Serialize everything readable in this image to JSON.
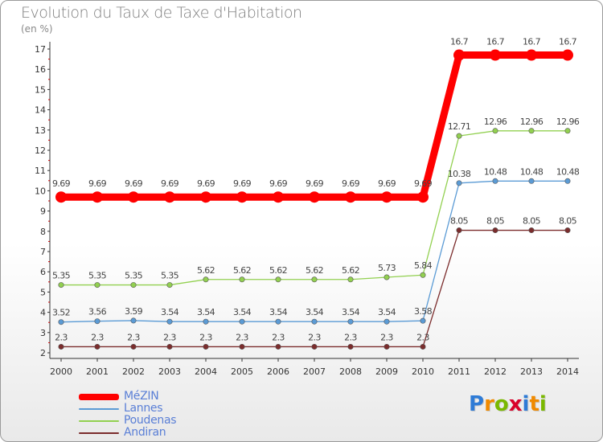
{
  "header": {
    "title": "Evolution du Taux de Taxe d'Habitation",
    "unit": "(en %)"
  },
  "chart_data": {
    "type": "line",
    "title": "Evolution du Taux de Taxe d'Habitation",
    "ylabel": "(en %)",
    "xlabel": "",
    "x": [
      "2000",
      "2001",
      "2002",
      "2003",
      "2004",
      "2005",
      "2006",
      "2007",
      "2008",
      "2009",
      "2010",
      "2011",
      "2012",
      "2013",
      "2014"
    ],
    "ylim": [
      2,
      17
    ],
    "yticks": [
      2,
      3,
      4,
      5,
      6,
      7,
      8,
      9,
      10,
      11,
      12,
      13,
      14,
      15,
      16,
      17
    ],
    "grid": false,
    "legend_position": "bottom-left",
    "series": [
      {
        "name": "MéZIN",
        "color": "#ff0000",
        "values": [
          9.69,
          9.69,
          9.69,
          9.69,
          9.69,
          9.69,
          9.69,
          9.69,
          9.69,
          9.69,
          9.69,
          16.7,
          16.7,
          16.7,
          16.7
        ],
        "labels": [
          "9.69",
          "9.69",
          "9.69",
          "9.69",
          "9.69",
          "9.69",
          "9.69",
          "9.69",
          "9.69",
          "9.69",
          "9.69",
          "16.7",
          "16.7",
          "16.7",
          "16.7"
        ]
      },
      {
        "name": "Lannes",
        "color": "#5b9bd5",
        "values": [
          3.52,
          3.56,
          3.59,
          3.54,
          3.54,
          3.54,
          3.54,
          3.54,
          3.54,
          3.54,
          3.58,
          10.38,
          10.48,
          10.48,
          10.48
        ],
        "labels": [
          "3.52",
          "3.56",
          "3.59",
          "3.54",
          "3.54",
          "3.54",
          "3.54",
          "3.54",
          "3.54",
          "3.54",
          "3.58",
          "10.38",
          "10.48",
          "10.48",
          "10.48"
        ]
      },
      {
        "name": "Poudenas",
        "color": "#92d050",
        "values": [
          5.35,
          5.35,
          5.35,
          5.35,
          5.62,
          5.62,
          5.62,
          5.62,
          5.62,
          5.73,
          5.84,
          12.71,
          12.96,
          12.96,
          12.96
        ],
        "labels": [
          "5.35",
          "5.35",
          "5.35",
          "5.35",
          "5.62",
          "5.62",
          "5.62",
          "5.62",
          "5.62",
          "5.73",
          "5.84",
          "12.71",
          "12.96",
          "12.96",
          "12.96"
        ]
      },
      {
        "name": "Andiran",
        "color": "#7b2c2c",
        "values": [
          2.3,
          2.3,
          2.3,
          2.3,
          2.3,
          2.3,
          2.3,
          2.3,
          2.3,
          2.3,
          2.3,
          8.05,
          8.05,
          8.05,
          8.05
        ],
        "labels": [
          "2.3",
          "2.3",
          "2.3",
          "2.3",
          "2.3",
          "2.3",
          "2.3",
          "2.3",
          "2.3",
          "2.3",
          "2.3",
          "8.05",
          "8.05",
          "8.05",
          "8.05"
        ]
      }
    ]
  },
  "legend": {
    "items": [
      "MéZIN",
      "Lannes",
      "Poudenas",
      "Andiran"
    ],
    "colors": [
      "#ff0000",
      "#5b9bd5",
      "#92d050",
      "#7b2c2c"
    ]
  },
  "logo": {
    "letters": [
      "P",
      "r",
      "o",
      "x",
      "i",
      "t",
      "i"
    ],
    "colors": [
      "#2e7bd6",
      "#f08a00",
      "#7ab800",
      "#d9002a",
      "#2e7bd6",
      "#f08a00",
      "#7ab800"
    ]
  }
}
